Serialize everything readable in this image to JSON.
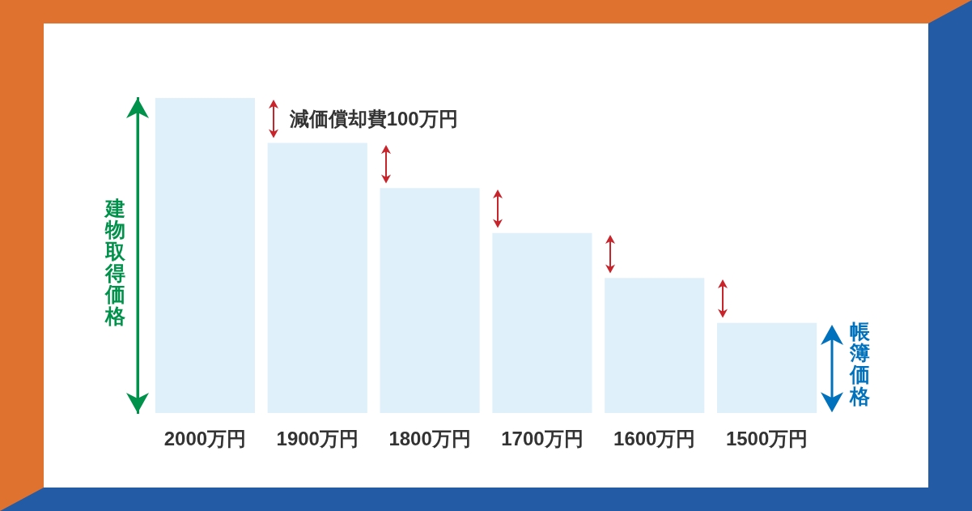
{
  "chart_data": {
    "type": "bar",
    "categories": [
      null,
      null,
      null,
      null,
      null,
      null
    ],
    "values": [
      2000,
      1900,
      1800,
      1700,
      1600,
      1500
    ],
    "value_labels": [
      "2000万円",
      "1900万円",
      "1800万円",
      "1700万円",
      "1600万円",
      "1500万円"
    ],
    "color": "#dff0fa",
    "ylim": [
      1300,
      2000
    ],
    "annotations": [
      "減価償却費100万円",
      "建物取得価格",
      "帳簿価格"
    ]
  }
}
